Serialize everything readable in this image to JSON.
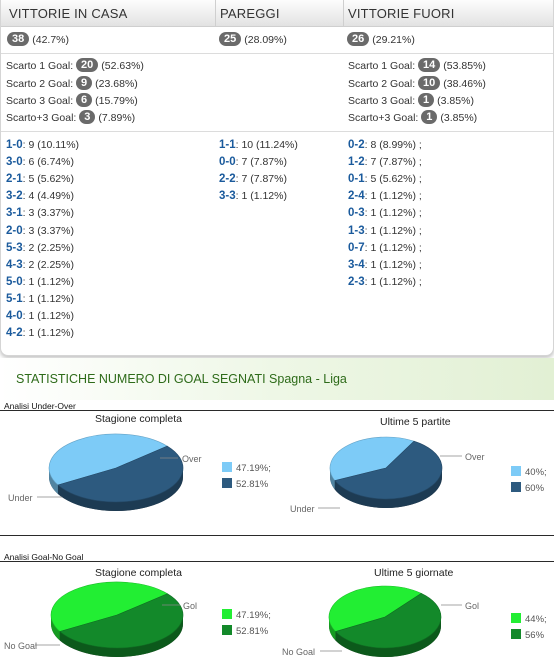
{
  "columns": {
    "home": {
      "header": "VITTORIE IN CASA",
      "total_count": "38",
      "total_pct": "(42.7%)",
      "margins": [
        {
          "label": "Scarto 1 Goal:",
          "count": "20",
          "pct": "(52.63%)"
        },
        {
          "label": "Scarto 2 Goal:",
          "count": "9",
          "pct": "(23.68%)"
        },
        {
          "label": "Scarto 3 Goal:",
          "count": "6",
          "pct": "(15.79%)"
        },
        {
          "label": "Scarto+3 Goal:",
          "count": "3",
          "pct": "(7.89%)"
        }
      ],
      "scores": [
        {
          "score": "1-0",
          "rest": ": 9 (10.11%)"
        },
        {
          "score": "3-0",
          "rest": ": 6 (6.74%)"
        },
        {
          "score": "2-1",
          "rest": ": 5 (5.62%)"
        },
        {
          "score": "3-2",
          "rest": ": 4 (4.49%)"
        },
        {
          "score": "3-1",
          "rest": ": 3 (3.37%)"
        },
        {
          "score": "2-0",
          "rest": ": 3 (3.37%)"
        },
        {
          "score": "5-3",
          "rest": ": 2 (2.25%)"
        },
        {
          "score": "4-3",
          "rest": ": 2 (2.25%)"
        },
        {
          "score": "5-0",
          "rest": ": 1 (1.12%)"
        },
        {
          "score": "5-1",
          "rest": ": 1 (1.12%)"
        },
        {
          "score": "4-0",
          "rest": ": 1 (1.12%)"
        },
        {
          "score": "4-2",
          "rest": ": 1 (1.12%)"
        }
      ]
    },
    "draws": {
      "header": "PAREGGI",
      "total_count": "25",
      "total_pct": "(28.09%)",
      "scores": [
        {
          "score": "1-1",
          "rest": ": 10 (11.24%)"
        },
        {
          "score": "0-0",
          "rest": ": 7 (7.87%)"
        },
        {
          "score": "2-2",
          "rest": ": 7 (7.87%)"
        },
        {
          "score": "3-3",
          "rest": ": 1 (1.12%)"
        }
      ]
    },
    "away": {
      "header": "VITTORIE FUORI",
      "total_count": "26",
      "total_pct": "(29.21%)",
      "margins": [
        {
          "label": "Scarto 1 Goal:",
          "count": "14",
          "pct": "(53.85%)"
        },
        {
          "label": "Scarto 2 Goal:",
          "count": "10",
          "pct": "(38.46%)"
        },
        {
          "label": "Scarto 3 Goal:",
          "count": "1",
          "pct": "(3.85%)"
        },
        {
          "label": "Scarto+3 Goal:",
          "count": "1",
          "pct": "(3.85%)"
        }
      ],
      "scores": [
        {
          "score": "0-2",
          "rest": ": 8 (8.99%) ;"
        },
        {
          "score": "1-2",
          "rest": ": 7 (7.87%) ;"
        },
        {
          "score": "0-1",
          "rest": ": 5 (5.62%) ;"
        },
        {
          "score": "2-4",
          "rest": ": 1 (1.12%) ;"
        },
        {
          "score": "0-3",
          "rest": ": 1 (1.12%) ;"
        },
        {
          "score": "1-3",
          "rest": ": 1 (1.12%) ;"
        },
        {
          "score": "0-7",
          "rest": ": 1 (1.12%) ;"
        },
        {
          "score": "3-4",
          "rest": ": 1 (1.12%) ;"
        },
        {
          "score": "2-3",
          "rest": ": 1 (1.12%) ;"
        }
      ]
    }
  },
  "stats": {
    "title": "STATISTICHE NUMERO DI GOAL SEGNATI Spagna - Liga",
    "under_over": {
      "box_title": "Analisi Under-Over",
      "left_title": "Stagione completa",
      "right_title": "Ultime 5 partite",
      "label_a": "Under",
      "label_b": "Over"
    },
    "goal_nogoal": {
      "box_title": "Analisi Goal-No Goal",
      "left_title": "Stagione completa",
      "right_title": "Ultime 5 giornate",
      "label_a": "No Goal",
      "label_b": "Gol"
    }
  },
  "chart_data": [
    {
      "type": "pie",
      "title": "Stagione completa",
      "slices": [
        {
          "label": "Under",
          "value": 47.19,
          "legend": "47.19%;",
          "color": "#7dcbf7"
        },
        {
          "label": "Over",
          "value": 52.81,
          "legend": "52.81%",
          "color": "#2d5a7f"
        }
      ]
    },
    {
      "type": "pie",
      "title": "Ultime 5 partite",
      "slices": [
        {
          "label": "Under",
          "value": 40,
          "legend": "40%;",
          "color": "#7dcbf7"
        },
        {
          "label": "Over",
          "value": 60,
          "legend": "60%",
          "color": "#2d5a7f"
        }
      ]
    },
    {
      "type": "pie",
      "title": "Stagione completa",
      "slices": [
        {
          "label": "No Goal",
          "value": 47.19,
          "legend": "47.19%;",
          "color": "#22ee33"
        },
        {
          "label": "Gol",
          "value": 52.81,
          "legend": "52.81%",
          "color": "#13892a"
        }
      ]
    },
    {
      "type": "pie",
      "title": "Ultime 5 giornate",
      "slices": [
        {
          "label": "No Goal",
          "value": 44,
          "legend": "44%;",
          "color": "#22ee33"
        },
        {
          "label": "Gol",
          "value": 56,
          "legend": "56%",
          "color": "#13892a"
        }
      ]
    }
  ]
}
